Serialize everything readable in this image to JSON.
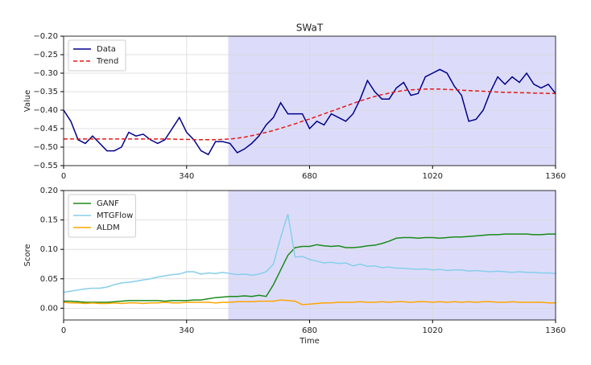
{
  "chart_data": [
    {
      "type": "line",
      "title": "SWaT",
      "ylabel": "Value",
      "x": [
        0,
        20,
        40,
        60,
        80,
        100,
        120,
        140,
        160,
        180,
        200,
        220,
        240,
        260,
        280,
        300,
        320,
        340,
        360,
        380,
        400,
        420,
        440,
        460,
        480,
        500,
        520,
        540,
        560,
        580,
        600,
        620,
        640,
        660,
        680,
        700,
        720,
        740,
        760,
        780,
        800,
        820,
        840,
        860,
        880,
        900,
        920,
        940,
        960,
        980,
        1000,
        1020,
        1040,
        1060,
        1080,
        1100,
        1120,
        1140,
        1160,
        1180,
        1200,
        1220,
        1240,
        1260,
        1280,
        1300,
        1320,
        1340,
        1360
      ],
      "series": [
        {
          "name": "Data",
          "color": "#00008b",
          "dash": false,
          "values": [
            -0.4,
            -0.43,
            -0.48,
            -0.49,
            -0.47,
            -0.49,
            -0.51,
            -0.51,
            -0.5,
            -0.46,
            -0.47,
            -0.465,
            -0.48,
            -0.49,
            -0.48,
            -0.45,
            -0.42,
            -0.46,
            -0.48,
            -0.51,
            -0.52,
            -0.485,
            -0.485,
            -0.49,
            -0.515,
            -0.505,
            -0.49,
            -0.47,
            -0.44,
            -0.42,
            -0.38,
            -0.41,
            -0.41,
            -0.41,
            -0.45,
            -0.43,
            -0.44,
            -0.41,
            -0.42,
            -0.43,
            -0.41,
            -0.37,
            -0.32,
            -0.35,
            -0.37,
            -0.37,
            -0.34,
            -0.325,
            -0.36,
            -0.355,
            -0.31,
            -0.3,
            -0.29,
            -0.3,
            -0.335,
            -0.36,
            -0.43,
            -0.425,
            -0.4,
            -0.35,
            -0.31,
            -0.33,
            -0.31,
            -0.325,
            -0.3,
            -0.33,
            -0.34,
            -0.33,
            -0.355
          ]
        },
        {
          "name": "Trend",
          "color": "#e41a1c",
          "dash": true,
          "values": [
            -0.478,
            -0.478,
            -0.478,
            -0.478,
            -0.478,
            -0.478,
            -0.478,
            -0.478,
            -0.478,
            -0.478,
            -0.478,
            -0.478,
            -0.478,
            -0.478,
            -0.478,
            -0.478,
            -0.479,
            -0.479,
            -0.48,
            -0.48,
            -0.48,
            -0.48,
            -0.479,
            -0.478,
            -0.476,
            -0.473,
            -0.469,
            -0.465,
            -0.46,
            -0.455,
            -0.449,
            -0.443,
            -0.437,
            -0.43,
            -0.424,
            -0.417,
            -0.41,
            -0.403,
            -0.396,
            -0.389,
            -0.382,
            -0.375,
            -0.369,
            -0.363,
            -0.358,
            -0.354,
            -0.35,
            -0.347,
            -0.345,
            -0.344,
            -0.343,
            -0.343,
            -0.343,
            -0.344,
            -0.345,
            -0.346,
            -0.347,
            -0.348,
            -0.349,
            -0.35,
            -0.351,
            -0.352,
            -0.352,
            -0.353,
            -0.353,
            -0.354,
            -0.354,
            -0.355,
            -0.355
          ]
        }
      ],
      "highlight_span": [
        455,
        1360
      ],
      "highlight_color": "#dcdcfa",
      "xlim": [
        0,
        1360
      ],
      "xticks": [
        0,
        340,
        680,
        1020,
        1360
      ],
      "ylim": [
        -0.55,
        -0.2
      ],
      "yticks": [
        {
          "value": -0.55,
          "label": "−0.55"
        },
        {
          "value": -0.5,
          "label": "−0.50"
        },
        {
          "value": -0.45,
          "label": "−0.45"
        },
        {
          "value": -0.4,
          "label": "−0.40"
        },
        {
          "value": -0.35,
          "label": "−0.35"
        },
        {
          "value": -0.3,
          "label": "−0.30"
        },
        {
          "value": -0.25,
          "label": "−0.25"
        },
        {
          "value": -0.2,
          "label": "−0.20"
        }
      ],
      "grid": true,
      "legend": "upper left"
    },
    {
      "type": "line",
      "xlabel": "Time",
      "ylabel": "Score",
      "x": [
        0,
        20,
        40,
        60,
        80,
        100,
        120,
        140,
        160,
        180,
        200,
        220,
        240,
        260,
        280,
        300,
        320,
        340,
        360,
        380,
        400,
        420,
        440,
        460,
        480,
        500,
        520,
        540,
        560,
        580,
        600,
        620,
        640,
        660,
        680,
        700,
        720,
        740,
        760,
        780,
        800,
        820,
        840,
        860,
        880,
        900,
        920,
        940,
        960,
        980,
        1000,
        1020,
        1040,
        1060,
        1080,
        1100,
        1120,
        1140,
        1160,
        1180,
        1200,
        1220,
        1240,
        1260,
        1280,
        1300,
        1320,
        1340,
        1360
      ],
      "series": [
        {
          "name": "GANF",
          "color": "#1a8a1a",
          "dash": false,
          "values": [
            0.012,
            0.012,
            0.011,
            0.01,
            0.01,
            0.01,
            0.01,
            0.011,
            0.012,
            0.013,
            0.013,
            0.013,
            0.013,
            0.013,
            0.012,
            0.013,
            0.013,
            0.013,
            0.014,
            0.014,
            0.016,
            0.018,
            0.019,
            0.02,
            0.02,
            0.021,
            0.02,
            0.022,
            0.02,
            0.04,
            0.065,
            0.09,
            0.103,
            0.105,
            0.105,
            0.108,
            0.106,
            0.105,
            0.106,
            0.103,
            0.103,
            0.104,
            0.106,
            0.107,
            0.11,
            0.114,
            0.119,
            0.12,
            0.12,
            0.119,
            0.12,
            0.12,
            0.119,
            0.12,
            0.121,
            0.121,
            0.122,
            0.123,
            0.124,
            0.125,
            0.125,
            0.126,
            0.126,
            0.126,
            0.126,
            0.125,
            0.125,
            0.126,
            0.126
          ]
        },
        {
          "name": "MTGFlow",
          "color": "#87ceeb",
          "dash": false,
          "values": [
            0.027,
            0.029,
            0.031,
            0.033,
            0.034,
            0.034,
            0.036,
            0.04,
            0.043,
            0.044,
            0.046,
            0.048,
            0.05,
            0.053,
            0.055,
            0.057,
            0.058,
            0.062,
            0.062,
            0.058,
            0.06,
            0.059,
            0.061,
            0.059,
            0.057,
            0.058,
            0.056,
            0.058,
            0.062,
            0.075,
            0.12,
            0.16,
            0.087,
            0.088,
            0.083,
            0.08,
            0.077,
            0.078,
            0.076,
            0.077,
            0.072,
            0.075,
            0.071,
            0.072,
            0.069,
            0.07,
            0.068,
            0.068,
            0.067,
            0.066,
            0.067,
            0.065,
            0.066,
            0.064,
            0.065,
            0.065,
            0.063,
            0.064,
            0.063,
            0.062,
            0.063,
            0.062,
            0.061,
            0.062,
            0.061,
            0.061,
            0.06,
            0.06,
            0.059
          ]
        },
        {
          "name": "ALDM",
          "color": "#ffa500",
          "dash": false,
          "values": [
            0.01,
            0.009,
            0.009,
            0.008,
            0.009,
            0.008,
            0.008,
            0.009,
            0.008,
            0.009,
            0.009,
            0.008,
            0.009,
            0.009,
            0.01,
            0.009,
            0.009,
            0.01,
            0.01,
            0.01,
            0.01,
            0.009,
            0.01,
            0.01,
            0.011,
            0.011,
            0.011,
            0.012,
            0.012,
            0.012,
            0.014,
            0.013,
            0.012,
            0.006,
            0.007,
            0.008,
            0.009,
            0.009,
            0.01,
            0.01,
            0.01,
            0.011,
            0.01,
            0.01,
            0.011,
            0.01,
            0.011,
            0.011,
            0.01,
            0.011,
            0.011,
            0.01,
            0.011,
            0.01,
            0.011,
            0.01,
            0.011,
            0.01,
            0.011,
            0.011,
            0.01,
            0.01,
            0.011,
            0.01,
            0.01,
            0.01,
            0.01,
            0.009,
            0.009
          ]
        }
      ],
      "highlight_span": [
        455,
        1360
      ],
      "highlight_color": "#dcdcfa",
      "xlim": [
        0,
        1360
      ],
      "xticks": [
        0,
        340,
        680,
        1020,
        1360
      ],
      "ylim": [
        -0.02,
        0.2
      ],
      "yticks": [
        {
          "value": 0,
          "label": "0.00"
        },
        {
          "value": 0.05,
          "label": "0.05"
        },
        {
          "value": 0.1,
          "label": "0.10"
        },
        {
          "value": 0.15,
          "label": "0.15"
        },
        {
          "value": 0.2,
          "label": "0.20"
        }
      ],
      "grid": true,
      "legend": "upper left"
    }
  ]
}
